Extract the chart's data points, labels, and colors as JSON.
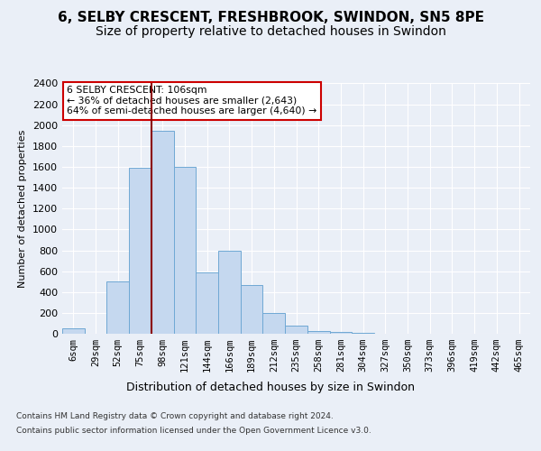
{
  "title_line1": "6, SELBY CRESCENT, FRESHBROOK, SWINDON, SN5 8PE",
  "title_line2": "Size of property relative to detached houses in Swindon",
  "xlabel": "Distribution of detached houses by size in Swindon",
  "ylabel": "Number of detached properties",
  "footer_line1": "Contains HM Land Registry data © Crown copyright and database right 2024.",
  "footer_line2": "Contains public sector information licensed under the Open Government Licence v3.0.",
  "categories": [
    "6sqm",
    "29sqm",
    "52sqm",
    "75sqm",
    "98sqm",
    "121sqm",
    "144sqm",
    "166sqm",
    "189sqm",
    "212sqm",
    "235sqm",
    "258sqm",
    "281sqm",
    "304sqm",
    "327sqm",
    "350sqm",
    "373sqm",
    "396sqm",
    "419sqm",
    "442sqm",
    "465sqm"
  ],
  "values": [
    50,
    0,
    500,
    1590,
    1950,
    1600,
    590,
    800,
    470,
    200,
    80,
    25,
    20,
    10,
    0,
    0,
    0,
    0,
    0,
    0,
    0
  ],
  "bar_color": "#c5d8ef",
  "bar_edge_color": "#6fa8d4",
  "vline_x_pos": 4.0,
  "vline_color": "#8b0000",
  "annotation_text": "6 SELBY CRESCENT: 106sqm\n← 36% of detached houses are smaller (2,643)\n64% of semi-detached houses are larger (4,640) →",
  "annotation_box_facecolor": "#ffffff",
  "annotation_box_edgecolor": "#cc0000",
  "ylim": [
    0,
    2400
  ],
  "yticks": [
    0,
    200,
    400,
    600,
    800,
    1000,
    1200,
    1400,
    1600,
    1800,
    2000,
    2200,
    2400
  ],
  "background_color": "#eaeff7",
  "grid_color": "#ffffff",
  "title_fontsize": 11,
  "subtitle_fontsize": 10,
  "xlabel_fontsize": 9,
  "ylabel_fontsize": 8,
  "tick_fontsize": 7.5,
  "footer_fontsize": 6.5
}
